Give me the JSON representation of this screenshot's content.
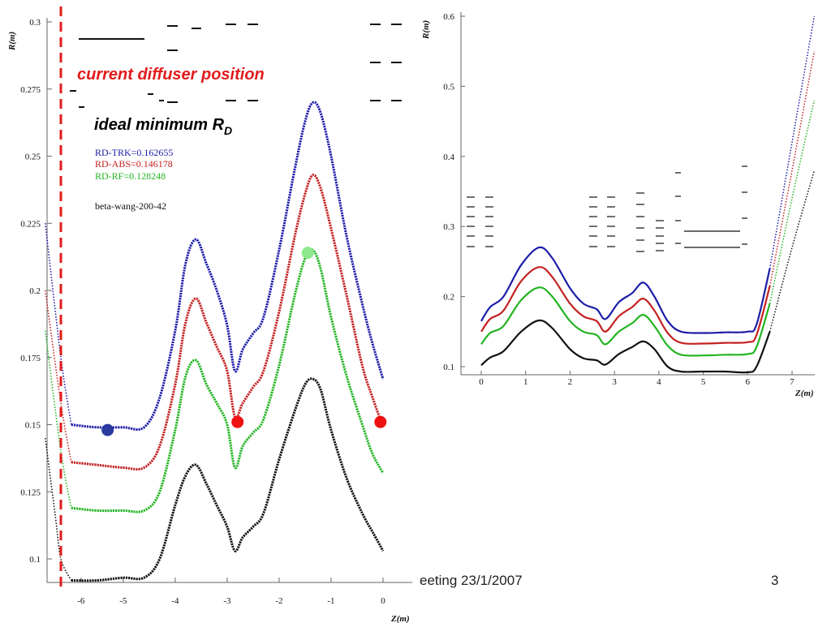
{
  "footer": {
    "text": "eeting 23/1/2007",
    "page_number": "3"
  },
  "chart_data": [
    {
      "type": "line",
      "ylabel": "R(m)",
      "xlabel": "Z(m)",
      "xlim": [
        -6.3,
        0.5
      ],
      "ylim": [
        0.09,
        0.3
      ],
      "x_ticks": [
        "-6",
        "-5",
        "-4",
        "-3",
        "-2",
        "-1",
        "0"
      ],
      "y_ticks": [
        "0.1",
        "0.125",
        "0.15",
        "0.175",
        "0.2",
        "0.225",
        "0.25",
        "0.275",
        "0.3"
      ],
      "annotations": {
        "diffuser": "current diffuser position",
        "ideal": "ideal minimum R",
        "ideal_sub": "D"
      },
      "legend": [
        {
          "text": "RD-TRK=0.162655",
          "color": "#1c1ca8"
        },
        {
          "text": "RD-ABS=0.146178",
          "color": "#c42020"
        },
        {
          "text": "RD-RF=0.128248",
          "color": "#22b422"
        },
        {
          "text": "beta-wang-200-42",
          "color": "#111111"
        }
      ],
      "diffuser_z": -6.2,
      "series": [
        {
          "color": "#1c1ca8",
          "x": [
            -6.5,
            -6.2,
            -6.0,
            -5.5,
            -5.0,
            -4.6,
            -4.3,
            -4.0,
            -3.8,
            -3.6,
            -3.4,
            -3.2,
            -3.0,
            -2.85,
            -2.7,
            -2.5,
            -2.3,
            -2.0,
            -1.7,
            -1.5,
            -1.35,
            -1.2,
            -1.0,
            -0.7,
            -0.4,
            -0.2,
            0.0
          ],
          "y": [
            0.225,
            0.175,
            0.15,
            0.149,
            0.149,
            0.149,
            0.16,
            0.185,
            0.21,
            0.219,
            0.21,
            0.2,
            0.187,
            0.17,
            0.178,
            0.184,
            0.19,
            0.215,
            0.245,
            0.263,
            0.27,
            0.266,
            0.25,
            0.22,
            0.195,
            0.18,
            0.167
          ]
        },
        {
          "color": "#c42020",
          "x": [
            -6.5,
            -6.2,
            -6.0,
            -5.5,
            -5.0,
            -4.6,
            -4.3,
            -4.0,
            -3.8,
            -3.6,
            -3.4,
            -3.2,
            -3.0,
            -2.85,
            -2.7,
            -2.5,
            -2.3,
            -2.0,
            -1.7,
            -1.5,
            -1.35,
            -1.2,
            -1.0,
            -0.7,
            -0.4,
            -0.2,
            0.0
          ],
          "y": [
            0.2,
            0.158,
            0.136,
            0.135,
            0.134,
            0.134,
            0.142,
            0.165,
            0.188,
            0.197,
            0.188,
            0.179,
            0.17,
            0.153,
            0.158,
            0.164,
            0.17,
            0.192,
            0.22,
            0.236,
            0.243,
            0.238,
            0.223,
            0.198,
            0.172,
            0.16,
            0.149
          ]
        },
        {
          "color": "#22b422",
          "x": [
            -6.5,
            -6.2,
            -6.0,
            -5.5,
            -5.0,
            -4.6,
            -4.3,
            -4.0,
            -3.8,
            -3.6,
            -3.4,
            -3.2,
            -3.0,
            -2.85,
            -2.7,
            -2.5,
            -2.3,
            -2.0,
            -1.7,
            -1.5,
            -1.35,
            -1.2,
            -1.0,
            -0.7,
            -0.4,
            -0.2,
            0.0
          ],
          "y": [
            0.185,
            0.14,
            0.119,
            0.118,
            0.118,
            0.118,
            0.125,
            0.148,
            0.168,
            0.174,
            0.165,
            0.158,
            0.15,
            0.134,
            0.142,
            0.147,
            0.152,
            0.172,
            0.198,
            0.212,
            0.215,
            0.208,
            0.19,
            0.168,
            0.15,
            0.139,
            0.132
          ]
        },
        {
          "color": "#111111",
          "x": [
            -6.5,
            -6.3,
            -6.2,
            -6.0,
            -5.5,
            -5.0,
            -4.6,
            -4.3,
            -4.0,
            -3.8,
            -3.6,
            -3.4,
            -3.2,
            -3.0,
            -2.85,
            -2.7,
            -2.5,
            -2.3,
            -2.0,
            -1.7,
            -1.5,
            -1.35,
            -1.2,
            -1.0,
            -0.7,
            -0.4,
            -0.2,
            0.0
          ],
          "y": [
            0.145,
            0.115,
            0.1,
            0.092,
            0.092,
            0.093,
            0.093,
            0.1,
            0.12,
            0.131,
            0.135,
            0.128,
            0.12,
            0.112,
            0.103,
            0.108,
            0.112,
            0.117,
            0.137,
            0.155,
            0.165,
            0.167,
            0.163,
            0.148,
            0.13,
            0.117,
            0.11,
            0.103
          ]
        }
      ],
      "markers": [
        {
          "x": -5.3,
          "y": 0.148,
          "color": "#2a3aa0"
        },
        {
          "x": -2.8,
          "y": 0.151,
          "color": "#ee1111"
        },
        {
          "x": -0.05,
          "y": 0.151,
          "color": "#ee1111"
        },
        {
          "x": -1.45,
          "y": 0.214,
          "color": "#8ee88e"
        }
      ]
    },
    {
      "type": "line",
      "ylabel": "R(m)",
      "xlabel": "Z(m)",
      "xlim": [
        -0.5,
        7.5
      ],
      "ylim": [
        0.08,
        0.6
      ],
      "x_ticks": [
        "0",
        "1",
        "2",
        "3",
        "4",
        "5",
        "6",
        "7"
      ],
      "y_ticks": [
        "0.1",
        "0.2",
        "0.3",
        "0.4",
        "0.5",
        "0.6"
      ],
      "series": [
        {
          "color": "#1c1ca8",
          "x": [
            0,
            0.2,
            0.5,
            0.9,
            1.3,
            1.6,
            2.0,
            2.3,
            2.6,
            2.8,
            3.1,
            3.4,
            3.65,
            3.9,
            4.2,
            4.5,
            5.0,
            5.5,
            6.0,
            6.2,
            6.5,
            7.0,
            7.5
          ],
          "y": [
            0.165,
            0.185,
            0.2,
            0.245,
            0.27,
            0.255,
            0.212,
            0.19,
            0.182,
            0.168,
            0.192,
            0.205,
            0.22,
            0.2,
            0.165,
            0.15,
            0.148,
            0.149,
            0.15,
            0.16,
            0.24,
            0.42,
            0.6
          ]
        },
        {
          "color": "#c42020",
          "x": [
            0,
            0.2,
            0.5,
            0.9,
            1.3,
            1.6,
            2.0,
            2.3,
            2.6,
            2.8,
            3.1,
            3.4,
            3.65,
            3.9,
            4.2,
            4.5,
            5.0,
            5.5,
            6.0,
            6.2,
            6.5,
            7.0,
            7.5
          ],
          "y": [
            0.15,
            0.168,
            0.18,
            0.222,
            0.242,
            0.228,
            0.19,
            0.172,
            0.165,
            0.15,
            0.172,
            0.185,
            0.197,
            0.18,
            0.148,
            0.134,
            0.133,
            0.134,
            0.135,
            0.145,
            0.215,
            0.38,
            0.55
          ]
        },
        {
          "color": "#22b422",
          "x": [
            0,
            0.2,
            0.5,
            0.9,
            1.3,
            1.6,
            2.0,
            2.3,
            2.6,
            2.8,
            3.1,
            3.4,
            3.65,
            3.9,
            4.2,
            4.5,
            5.0,
            5.5,
            6.0,
            6.2,
            6.5,
            7.0,
            7.5
          ],
          "y": [
            0.132,
            0.148,
            0.158,
            0.195,
            0.213,
            0.2,
            0.165,
            0.15,
            0.145,
            0.132,
            0.15,
            0.162,
            0.174,
            0.158,
            0.13,
            0.117,
            0.116,
            0.117,
            0.118,
            0.128,
            0.19,
            0.34,
            0.48
          ]
        },
        {
          "color": "#111111",
          "x": [
            0,
            0.2,
            0.5,
            0.9,
            1.3,
            1.6,
            2.0,
            2.3,
            2.6,
            2.8,
            3.1,
            3.4,
            3.65,
            3.9,
            4.2,
            4.5,
            5.0,
            5.5,
            6.0,
            6.2,
            6.5,
            7.0,
            7.5
          ],
          "y": [
            0.102,
            0.113,
            0.122,
            0.15,
            0.166,
            0.155,
            0.125,
            0.112,
            0.109,
            0.103,
            0.118,
            0.128,
            0.136,
            0.125,
            0.1,
            0.093,
            0.093,
            0.093,
            0.092,
            0.1,
            0.15,
            0.27,
            0.38
          ]
        }
      ]
    }
  ]
}
